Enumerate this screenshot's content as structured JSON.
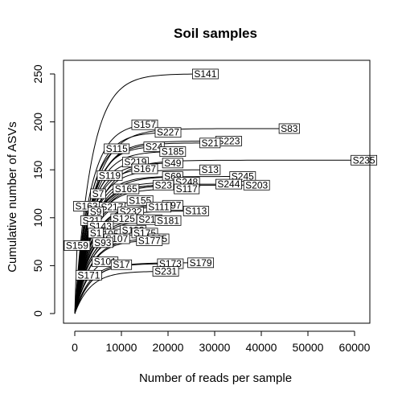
{
  "chart_data": {
    "type": "line",
    "title": "Soil samples",
    "xlabel": "Number of reads per sample",
    "ylabel": "Cumulative number of ASVs",
    "xlim": [
      0,
      62000
    ],
    "ylim": [
      0,
      255
    ],
    "x_ticks": [
      0,
      10000,
      20000,
      30000,
      40000,
      50000,
      60000
    ],
    "x_tick_labels": [
      "0",
      "10000",
      "20000",
      "30000",
      "40000",
      "50000",
      "60000"
    ],
    "y_ticks": [
      0,
      50,
      100,
      150,
      200,
      250
    ],
    "y_tick_labels": [
      "0",
      "50",
      "100",
      "150",
      "200",
      "250"
    ],
    "grid": false,
    "line_color": "#000000",
    "series": [
      {
        "name": "S141",
        "max_reads": 28000,
        "max_asvs": 250
      },
      {
        "name": "S83",
        "max_reads": 46000,
        "max_asvs": 193
      },
      {
        "name": "S157",
        "max_reads": 15000,
        "max_asvs": 197
      },
      {
        "name": "S227",
        "max_reads": 20000,
        "max_asvs": 189
      },
      {
        "name": "S223",
        "max_reads": 33000,
        "max_asvs": 180
      },
      {
        "name": "S21",
        "max_reads": 29000,
        "max_asvs": 178
      },
      {
        "name": "S235",
        "max_reads": 62000,
        "max_asvs": 160
      },
      {
        "name": "S24",
        "max_reads": 17000,
        "max_asvs": 174
      },
      {
        "name": "S185",
        "max_reads": 21000,
        "max_asvs": 169
      },
      {
        "name": "S115",
        "max_reads": 9000,
        "max_asvs": 172
      },
      {
        "name": "S219",
        "max_reads": 13000,
        "max_asvs": 158
      },
      {
        "name": "S49",
        "max_reads": 21000,
        "max_asvs": 157
      },
      {
        "name": "S13",
        "max_reads": 29000,
        "max_asvs": 150
      },
      {
        "name": "S167",
        "max_reads": 15000,
        "max_asvs": 151
      },
      {
        "name": "S245",
        "max_reads": 36000,
        "max_asvs": 143
      },
      {
        "name": "S69",
        "max_reads": 21000,
        "max_asvs": 143
      },
      {
        "name": "S119",
        "max_reads": 7500,
        "max_asvs": 144
      },
      {
        "name": "S244",
        "max_reads": 33000,
        "max_asvs": 135
      },
      {
        "name": "S203",
        "max_reads": 39000,
        "max_asvs": 134
      },
      {
        "name": "S248",
        "max_reads": 24000,
        "max_asvs": 137
      },
      {
        "name": "S23",
        "max_reads": 19000,
        "max_asvs": 134
      },
      {
        "name": "S117",
        "max_reads": 24000,
        "max_asvs": 130
      },
      {
        "name": "S165",
        "max_reads": 11000,
        "max_asvs": 130
      },
      {
        "name": "S7",
        "max_reads": 5000,
        "max_asvs": 125
      },
      {
        "name": "S155",
        "max_reads": 14000,
        "max_asvs": 118
      },
      {
        "name": "S97",
        "max_reads": 21000,
        "max_asvs": 113
      },
      {
        "name": "S113",
        "max_reads": 26000,
        "max_asvs": 107
      },
      {
        "name": "S111",
        "max_reads": 18000,
        "max_asvs": 111
      },
      {
        "name": "S163",
        "max_reads": 2500,
        "max_asvs": 112
      },
      {
        "name": "S217",
        "max_reads": 8000,
        "max_asvs": 111
      },
      {
        "name": "S9",
        "max_reads": 4500,
        "max_asvs": 106
      },
      {
        "name": "S232",
        "max_reads": 12000,
        "max_asvs": 106
      },
      {
        "name": "S211",
        "max_reads": 16000,
        "max_asvs": 98
      },
      {
        "name": "S181",
        "max_reads": 20000,
        "max_asvs": 97
      },
      {
        "name": "S21",
        "max_reads": 3500,
        "max_asvs": 97
      },
      {
        "name": "S125",
        "max_reads": 10500,
        "max_asvs": 99
      },
      {
        "name": "S143",
        "max_reads": 5500,
        "max_asvs": 91
      },
      {
        "name": "S193",
        "max_reads": 12500,
        "max_asvs": 87
      },
      {
        "name": "S175",
        "max_reads": 15000,
        "max_asvs": 84
      },
      {
        "name": "S105",
        "max_reads": 7000,
        "max_asvs": 83
      },
      {
        "name": "S1",
        "max_reads": 4500,
        "max_asvs": 84
      },
      {
        "name": "S95",
        "max_reads": 18000,
        "max_asvs": 78
      },
      {
        "name": "S177",
        "max_reads": 16000,
        "max_asvs": 76
      },
      {
        "name": "S107",
        "max_reads": 9000,
        "max_asvs": 78
      },
      {
        "name": "S93",
        "max_reads": 6000,
        "max_asvs": 74
      },
      {
        "name": "S159",
        "max_reads": 500,
        "max_asvs": 71
      },
      {
        "name": "S179",
        "max_reads": 27000,
        "max_asvs": 53
      },
      {
        "name": "S173",
        "max_reads": 20500,
        "max_asvs": 52
      },
      {
        "name": "S101",
        "max_reads": 6500,
        "max_asvs": 54
      },
      {
        "name": "S17",
        "max_reads": 10000,
        "max_asvs": 51
      },
      {
        "name": "S231",
        "max_reads": 19500,
        "max_asvs": 44
      },
      {
        "name": "S171",
        "max_reads": 3000,
        "max_asvs": 40
      }
    ]
  }
}
